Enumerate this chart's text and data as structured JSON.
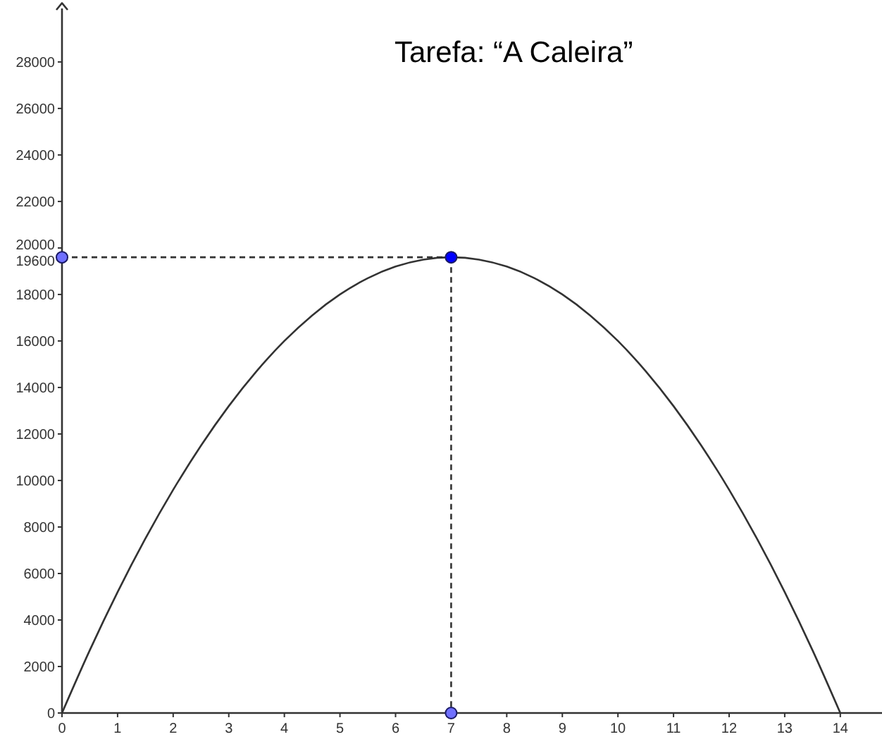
{
  "chart_data": {
    "type": "line",
    "title": "Tarefa: “A Caleira”",
    "xlim": [
      0,
      14.75
    ],
    "xticks": [
      0,
      1,
      2,
      3,
      4,
      5,
      6,
      7,
      8,
      9,
      10,
      11,
      12,
      13,
      14
    ],
    "ylim": [
      0,
      30300
    ],
    "yticks": [
      0,
      2000,
      4000,
      6000,
      8000,
      10000,
      12000,
      14000,
      16000,
      18000,
      19600,
      20000,
      22000,
      24000,
      26000,
      28000
    ],
    "series": [
      {
        "color": "#333333",
        "x": [
          0,
          0.5,
          1,
          1.5,
          2,
          2.5,
          3,
          3.5,
          4,
          4.5,
          5,
          5.5,
          6,
          6.5,
          7,
          7.5,
          8,
          8.5,
          9,
          9.5,
          10,
          10.5,
          11,
          11.5,
          12,
          12.5,
          13,
          13.5,
          14
        ],
        "values": [
          0,
          2700,
          5200,
          7500,
          9600,
          11500,
          13200,
          14700,
          16000,
          17100,
          18000,
          18700,
          19200,
          19500,
          19600,
          19500,
          19200,
          18700,
          18000,
          17100,
          16000,
          14700,
          13200,
          11500,
          9600,
          7500,
          5200,
          2700,
          0
        ]
      },
      {
        "color": "#333333",
        "line_style": "dashed",
        "x": [
          0,
          7
        ],
        "values": [
          19600,
          19600
        ]
      },
      {
        "color": "#333333",
        "line_style": "dashed",
        "x": [
          7,
          7
        ],
        "values": [
          19600,
          0
        ]
      },
      {
        "type": "scatter",
        "marker": "circle",
        "x": [
          0,
          7,
          7
        ],
        "values": [
          19600,
          19600,
          0
        ],
        "colors": [
          "#7070ff",
          "#0000ff",
          "#7070ff"
        ]
      }
    ]
  }
}
